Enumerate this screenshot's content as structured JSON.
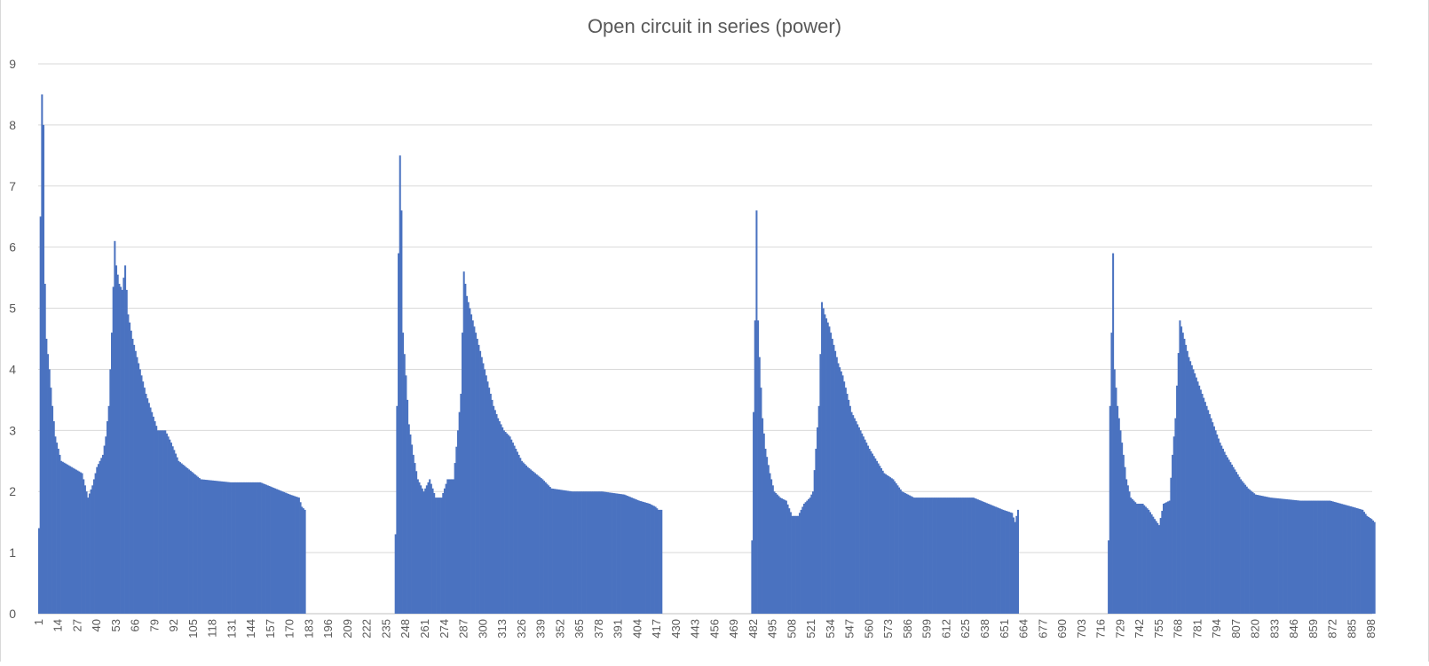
{
  "chart_data": {
    "type": "bar",
    "title": "Open circuit in series (power)",
    "xlabel": "",
    "ylabel": "",
    "ylim": [
      0,
      9
    ],
    "yticks": [
      "0",
      "1",
      "2",
      "3",
      "4",
      "5",
      "6",
      "7",
      "8",
      "9"
    ],
    "xlim": [
      1,
      898
    ],
    "x_tick_labels": [
      "1",
      "14",
      "27",
      "40",
      "53",
      "66",
      "79",
      "92",
      "105",
      "118",
      "131",
      "144",
      "157",
      "170",
      "183",
      "196",
      "209",
      "222",
      "235",
      "248",
      "261",
      "274",
      "287",
      "300",
      "313",
      "326",
      "339",
      "352",
      "365",
      "378",
      "391",
      "404",
      "417",
      "430",
      "443",
      "456",
      "469",
      "482",
      "495",
      "508",
      "521",
      "534",
      "547",
      "560",
      "573",
      "586",
      "599",
      "612",
      "625",
      "638",
      "651",
      "664",
      "677",
      "690",
      "703",
      "716",
      "729",
      "742",
      "755",
      "768",
      "781",
      "794",
      "807",
      "820",
      "833",
      "846",
      "859",
      "872",
      "885",
      "898"
    ],
    "grid": true,
    "legend": "none",
    "bar_color": "#4a72c0",
    "series": [
      {
        "values_by_x_range": [
          {
            "x_start": 1,
            "x_end": 180,
            "keypoints": [
              [
                1,
                1.4
              ],
              [
                2,
                6.5
              ],
              [
                3,
                8.5
              ],
              [
                4,
                8.0
              ],
              [
                5,
                5.4
              ],
              [
                6,
                4.5
              ],
              [
                8,
                4.0
              ],
              [
                10,
                3.4
              ],
              [
                12,
                2.9
              ],
              [
                14,
                2.7
              ],
              [
                16,
                2.5
              ],
              [
                30,
                2.3
              ],
              [
                34,
                1.9
              ],
              [
                37,
                2.1
              ],
              [
                40,
                2.4
              ],
              [
                44,
                2.6
              ],
              [
                46,
                2.9
              ],
              [
                48,
                3.4
              ],
              [
                50,
                4.6
              ],
              [
                52,
                6.1
              ],
              [
                53,
                5.7
              ],
              [
                55,
                5.4
              ],
              [
                57,
                5.3
              ],
              [
                59,
                5.7
              ],
              [
                61,
                4.9
              ],
              [
                64,
                4.5
              ],
              [
                67,
                4.2
              ],
              [
                70,
                3.9
              ],
              [
                73,
                3.6
              ],
              [
                77,
                3.3
              ],
              [
                81,
                3.0
              ],
              [
                86,
                3.0
              ],
              [
                90,
                2.8
              ],
              [
                95,
                2.5
              ],
              [
                100,
                2.4
              ],
              [
                110,
                2.2
              ],
              [
                130,
                2.15
              ],
              [
                150,
                2.15
              ],
              [
                160,
                2.05
              ],
              [
                170,
                1.95
              ],
              [
                176,
                1.9
              ],
              [
                178,
                1.75
              ],
              [
                180,
                1.7
              ]
            ]
          },
          {
            "x_start": 241,
            "x_end": 420,
            "keypoints": [
              [
                241,
                1.3
              ],
              [
                242,
                3.4
              ],
              [
                243,
                5.9
              ],
              [
                244,
                7.5
              ],
              [
                245,
                6.6
              ],
              [
                246,
                4.6
              ],
              [
                248,
                3.9
              ],
              [
                250,
                3.1
              ],
              [
                253,
                2.6
              ],
              [
                256,
                2.2
              ],
              [
                260,
                2.0
              ],
              [
                264,
                2.2
              ],
              [
                268,
                1.9
              ],
              [
                272,
                1.9
              ],
              [
                276,
                2.2
              ],
              [
                280,
                2.2
              ],
              [
                283,
                3.0
              ],
              [
                285,
                3.6
              ],
              [
                287,
                5.6
              ],
              [
                289,
                5.2
              ],
              [
                292,
                4.9
              ],
              [
                295,
                4.6
              ],
              [
                298,
                4.3
              ],
              [
                301,
                4.0
              ],
              [
                304,
                3.7
              ],
              [
                307,
                3.4
              ],
              [
                310,
                3.2
              ],
              [
                314,
                3.0
              ],
              [
                318,
                2.9
              ],
              [
                322,
                2.7
              ],
              [
                326,
                2.5
              ],
              [
                330,
                2.4
              ],
              [
                335,
                2.3
              ],
              [
                340,
                2.2
              ],
              [
                346,
                2.05
              ],
              [
                360,
                2.0
              ],
              [
                380,
                2.0
              ],
              [
                395,
                1.95
              ],
              [
                405,
                1.85
              ],
              [
                412,
                1.8
              ],
              [
                416,
                1.75
              ],
              [
                418,
                1.7
              ],
              [
                420,
                1.7
              ]
            ]
          },
          {
            "x_start": 481,
            "x_end": 660,
            "keypoints": [
              [
                481,
                1.2
              ],
              [
                482,
                3.3
              ],
              [
                483,
                4.8
              ],
              [
                484,
                6.6
              ],
              [
                485,
                4.8
              ],
              [
                486,
                4.2
              ],
              [
                488,
                3.2
              ],
              [
                490,
                2.7
              ],
              [
                493,
                2.3
              ],
              [
                496,
                2.0
              ],
              [
                500,
                1.9
              ],
              [
                504,
                1.85
              ],
              [
                508,
                1.6
              ],
              [
                512,
                1.6
              ],
              [
                516,
                1.8
              ],
              [
                520,
                1.9
              ],
              [
                522,
                2.0
              ],
              [
                524,
                2.7
              ],
              [
                526,
                3.4
              ],
              [
                528,
                5.1
              ],
              [
                530,
                4.9
              ],
              [
                533,
                4.7
              ],
              [
                536,
                4.4
              ],
              [
                539,
                4.1
              ],
              [
                542,
                3.9
              ],
              [
                545,
                3.6
              ],
              [
                548,
                3.3
              ],
              [
                552,
                3.1
              ],
              [
                556,
                2.9
              ],
              [
                560,
                2.7
              ],
              [
                565,
                2.5
              ],
              [
                570,
                2.3
              ],
              [
                576,
                2.2
              ],
              [
                582,
                2.0
              ],
              [
                590,
                1.9
              ],
              [
                610,
                1.9
              ],
              [
                630,
                1.9
              ],
              [
                640,
                1.8
              ],
              [
                650,
                1.7
              ],
              [
                656,
                1.65
              ],
              [
                658,
                1.5
              ],
              [
                660,
                1.7
              ]
            ]
          },
          {
            "x_start": 721,
            "x_end": 900,
            "keypoints": [
              [
                721,
                1.2
              ],
              [
                722,
                3.4
              ],
              [
                723,
                4.6
              ],
              [
                724,
                5.9
              ],
              [
                725,
                4.0
              ],
              [
                727,
                3.4
              ],
              [
                729,
                3.0
              ],
              [
                731,
                2.6
              ],
              [
                733,
                2.2
              ],
              [
                736,
                1.9
              ],
              [
                740,
                1.8
              ],
              [
                744,
                1.8
              ],
              [
                748,
                1.7
              ],
              [
                752,
                1.55
              ],
              [
                755,
                1.45
              ],
              [
                758,
                1.8
              ],
              [
                762,
                1.85
              ],
              [
                764,
                2.6
              ],
              [
                766,
                3.2
              ],
              [
                769,
                4.8
              ],
              [
                772,
                4.5
              ],
              [
                775,
                4.2
              ],
              [
                778,
                4.0
              ],
              [
                781,
                3.8
              ],
              [
                784,
                3.6
              ],
              [
                787,
                3.4
              ],
              [
                790,
                3.2
              ],
              [
                793,
                3.0
              ],
              [
                796,
                2.8
              ],
              [
                800,
                2.6
              ],
              [
                805,
                2.4
              ],
              [
                810,
                2.2
              ],
              [
                815,
                2.05
              ],
              [
                820,
                1.95
              ],
              [
                830,
                1.9
              ],
              [
                850,
                1.85
              ],
              [
                870,
                1.85
              ],
              [
                885,
                1.75
              ],
              [
                892,
                1.7
              ],
              [
                895,
                1.6
              ],
              [
                898,
                1.55
              ],
              [
                900,
                1.5
              ]
            ]
          }
        ]
      }
    ]
  }
}
